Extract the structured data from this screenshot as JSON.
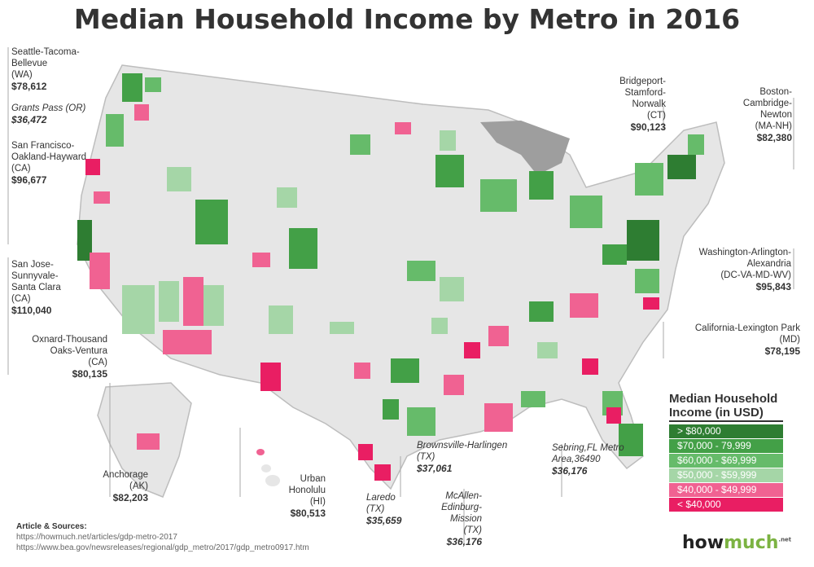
{
  "title": "Median Household Income by Metro in 2016",
  "callouts": [
    {
      "id": "seattle",
      "name": "Seattle-Tacoma-Bellevue",
      "state": "(WA)",
      "value": "$78,612",
      "italic": false
    },
    {
      "id": "grants",
      "name": "Grants Pass (OR)",
      "state": "",
      "value": "$36,472",
      "italic": true
    },
    {
      "id": "sf",
      "name": "San Francisco-Oakland-Hayward",
      "state": "(CA)",
      "value": "$96,677",
      "italic": false
    },
    {
      "id": "sj",
      "name": "San Jose-Sunnyvale-Santa Clara",
      "state": "(CA)",
      "value": "$110,040",
      "italic": false
    },
    {
      "id": "oxnard",
      "name": "Oxnard-Thousand Oaks-Ventura",
      "state": "(CA)",
      "value": "$80,135",
      "italic": false
    },
    {
      "id": "anchorage",
      "name": "Anchorage",
      "state": "(AK)",
      "value": "$82,203",
      "italic": false
    },
    {
      "id": "honolulu",
      "name": "Urban Honolulu",
      "state": "(HI)",
      "value": "$80,513",
      "italic": false
    },
    {
      "id": "laredo",
      "name": "Laredo",
      "state": "(TX)",
      "value": "$35,659",
      "italic": true
    },
    {
      "id": "mcallen",
      "name": "McAllen-Edinburg-Mission",
      "state": "(TX)",
      "value": "$36,176",
      "italic": true
    },
    {
      "id": "brownsville",
      "name": "Brownsville-Harlingen",
      "state": "(TX)",
      "value": "$37,061",
      "italic": true
    },
    {
      "id": "sebring",
      "name": "Sebring,FL Metro Area,36490",
      "state": "",
      "value": "$36,176",
      "italic": true
    },
    {
      "id": "bridgeport",
      "name": "Bridgeport-Stamford-Norwalk",
      "state": "(CT)",
      "value": "$90,123",
      "italic": false
    },
    {
      "id": "boston",
      "name": "Boston-Cambridge-Newton",
      "state": "(MA-NH)",
      "value": "$82,380",
      "italic": false
    },
    {
      "id": "washington",
      "name": "Washington-Arlington-Alexandria",
      "state": "(DC-VA-MD-WV)",
      "value": "$95,843",
      "italic": false
    },
    {
      "id": "california_md",
      "name": "California-Lexington Park",
      "state": "(MD)",
      "value": "$78,195",
      "italic": false
    }
  ],
  "legend": {
    "title_line1": "Median Household",
    "title_line2": "Income (in USD)",
    "items": [
      {
        "label": "> $80,000",
        "color": "#2e7d32"
      },
      {
        "label": "$70,000 - 79,999",
        "color": "#43a047"
      },
      {
        "label": "$60,000 - $69,999",
        "color": "#66bb6a"
      },
      {
        "label": "$50,000 - $59,999",
        "color": "#a5d6a7"
      },
      {
        "label": "$40,000 - $49,999",
        "color": "#f06292"
      },
      {
        "label": "< $40,000",
        "color": "#e91e63"
      }
    ]
  },
  "sources": {
    "header": "Article & Sources:",
    "line1": "https://howmuch.net/articles/gdp-metro-2017",
    "line2": "https://www.bea.gov/newsreleases/regional/gdp_metro/2017/gdp_metro0917.htm"
  },
  "logo": {
    "part1": "how",
    "part2": "much",
    "part3": ".net"
  }
}
